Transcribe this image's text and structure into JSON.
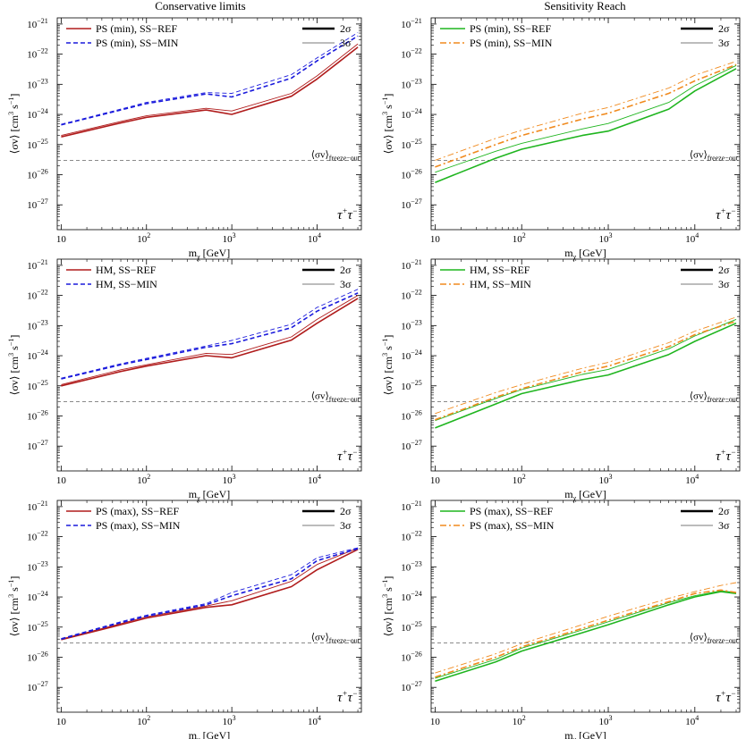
{
  "figure": {
    "column_titles": [
      "Conservative limits",
      "Sensitivity Reach"
    ]
  },
  "styles": {
    "red": "#b01c1c",
    "blue": "#1a1adc",
    "green": "#1fb51f",
    "orange": "#f08a1e",
    "gray": "#7a7a7a",
    "black": "#000000"
  },
  "chart_data": [
    {
      "id": "p00",
      "type": "line",
      "column": "Conservative limits",
      "xlabel": "m_χ [GeV]",
      "ylabel": "⟨σv⟩ [cm³ s⁻¹]",
      "xscale": "log",
      "yscale": "log",
      "xlim": [
        9,
        33000
      ],
      "ylim": [
        1.5e-28,
        1.6e-21
      ],
      "x_ticks": [
        10,
        100,
        1000,
        10000
      ],
      "x_tick_labels": [
        "10",
        "10²",
        "10³",
        "10⁴"
      ],
      "y_ticks": [
        1e-27,
        1e-26,
        1e-25,
        1e-24,
        1e-23,
        1e-22,
        1e-21
      ],
      "y_tick_labels": [
        "10⁻²⁷",
        "10⁻²⁶",
        "10⁻²⁵",
        "10⁻²⁴",
        "10⁻²³",
        "10⁻²²",
        "10⁻²¹"
      ],
      "channel": "τ⁺τ⁻",
      "freeze_out": {
        "value": 3e-26,
        "label": "⟨σv⟩",
        "sub": "freeze−out"
      },
      "legend": {
        "placement": "top-left",
        "entries": [
          "PS (min), SS−REF",
          "PS (min), SS−MIN"
        ]
      },
      "sigma_legend": {
        "placement": "top-right",
        "entries": [
          "2σ",
          "3σ"
        ]
      },
      "x": [
        10,
        50,
        100,
        500,
        1000,
        5000,
        10000,
        30000
      ],
      "series": [
        {
          "name": "PS (min), SS−REF",
          "sigma": "2σ",
          "color": "red",
          "dash": "solid",
          "values": [
            1.8e-25,
            5.2e-25,
            8e-25,
            1.4e-24,
            1e-24,
            4e-24,
            1.5e-23,
            1.7e-22
          ]
        },
        {
          "name": "PS (min), SS−REF",
          "sigma": "3σ",
          "color": "red",
          "dash": "solid",
          "values": [
            2e-25,
            5.8e-25,
            9e-25,
            1.6e-24,
            1.3e-24,
            5e-24,
            1.9e-23,
            2.2e-22
          ]
        },
        {
          "name": "PS (min), SS−MIN",
          "sigma": "2σ",
          "color": "blue",
          "dash": "dash",
          "values": [
            4.5e-25,
            1.4e-24,
            2.3e-24,
            4.8e-24,
            3.8e-24,
            1.6e-23,
            6e-23,
            4e-22
          ]
        },
        {
          "name": "PS (min), SS−MIN",
          "sigma": "3σ",
          "color": "blue",
          "dash": "dash",
          "values": [
            4.7e-25,
            1.5e-24,
            2.5e-24,
            5.3e-24,
            5e-24,
            2.1e-23,
            7.5e-23,
            5.2e-22
          ]
        }
      ]
    },
    {
      "id": "p01",
      "type": "line",
      "column": "Sensitivity Reach",
      "xlabel": "m_χ [GeV]",
      "ylabel": "⟨σv⟩ [cm³ s⁻¹]",
      "xscale": "log",
      "yscale": "log",
      "xlim": [
        9,
        33000
      ],
      "ylim": [
        1.5e-28,
        1.6e-21
      ],
      "x_ticks": [
        10,
        100,
        1000,
        10000
      ],
      "x_tick_labels": [
        "10",
        "10²",
        "10³",
        "10⁴"
      ],
      "y_ticks": [
        1e-27,
        1e-26,
        1e-25,
        1e-24,
        1e-23,
        1e-22,
        1e-21
      ],
      "y_tick_labels": [
        "10⁻²⁷",
        "10⁻²⁶",
        "10⁻²⁵",
        "10⁻²⁴",
        "10⁻²³",
        "10⁻²²",
        "10⁻²¹"
      ],
      "channel": "τ⁺τ⁻",
      "freeze_out": {
        "value": 3e-26,
        "label": "⟨σv⟩",
        "sub": "freeze−out"
      },
      "legend": {
        "placement": "top-left",
        "entries": [
          "PS (min), SS−REF",
          "PS (min), SS−MIN"
        ]
      },
      "sigma_legend": {
        "placement": "top-right",
        "entries": [
          "2σ",
          "3σ"
        ]
      },
      "x": [
        10,
        50,
        100,
        500,
        1000,
        5000,
        10000,
        30000
      ],
      "series": [
        {
          "name": "PS (min), SS−REF",
          "sigma": "2σ",
          "color": "green",
          "dash": "solid",
          "values": [
            5.5e-27,
            3.5e-26,
            7e-26,
            2e-25,
            2.8e-25,
            1.5e-24,
            6e-24,
            3.3e-23
          ]
        },
        {
          "name": "PS (min), SS−REF",
          "sigma": "3σ",
          "color": "green",
          "dash": "solid",
          "values": [
            1.2e-26,
            6e-26,
            1.1e-25,
            3.3e-25,
            5e-25,
            2.5e-24,
            9e-24,
            4.2e-23
          ]
        },
        {
          "name": "PS (min), SS−MIN",
          "sigma": "2σ",
          "color": "orange",
          "dash": "dashdot",
          "values": [
            1.8e-26,
            1e-25,
            2e-25,
            7e-25,
            1.1e-24,
            5e-24,
            1.3e-23,
            4.5e-23
          ]
        },
        {
          "name": "PS (min), SS−MIN",
          "sigma": "3σ",
          "color": "orange",
          "dash": "dashdot",
          "values": [
            3e-26,
            1.6e-25,
            3e-25,
            1.1e-24,
            1.7e-24,
            7.5e-24,
            2e-23,
            5.8e-23
          ]
        }
      ]
    },
    {
      "id": "p10",
      "type": "line",
      "column": "Conservative limits",
      "xlabel": "m_χ [GeV]",
      "ylabel": "⟨σv⟩ [cm³ s⁻¹]",
      "xscale": "log",
      "yscale": "log",
      "xlim": [
        9,
        33000
      ],
      "ylim": [
        1.5e-28,
        1.6e-21
      ],
      "x_ticks": [
        10,
        100,
        1000,
        10000
      ],
      "x_tick_labels": [
        "10",
        "10²",
        "10³",
        "10⁴"
      ],
      "y_ticks": [
        1e-27,
        1e-26,
        1e-25,
        1e-24,
        1e-23,
        1e-22,
        1e-21
      ],
      "y_tick_labels": [
        "10⁻²⁷",
        "10⁻²⁶",
        "10⁻²⁵",
        "10⁻²⁴",
        "10⁻²³",
        "10⁻²²",
        "10⁻²¹"
      ],
      "channel": "τ⁺τ⁻",
      "freeze_out": {
        "value": 3e-26,
        "label": "⟨σv⟩",
        "sub": "freeze−out"
      },
      "legend": {
        "placement": "top-left",
        "entries": [
          "HM, SS−REF",
          "HM, SS−MIN"
        ]
      },
      "sigma_legend": {
        "placement": "top-right",
        "entries": [
          "2σ",
          "3σ"
        ]
      },
      "x": [
        10,
        50,
        100,
        500,
        1000,
        5000,
        10000,
        30000
      ],
      "series": [
        {
          "name": "HM, SS−REF",
          "sigma": "2σ",
          "color": "red",
          "dash": "solid",
          "values": [
            1e-25,
            3e-25,
            4.5e-25,
            1e-24,
            8.5e-25,
            3.3e-24,
            1.2e-23,
            8e-23
          ]
        },
        {
          "name": "HM, SS−REF",
          "sigma": "3σ",
          "color": "red",
          "dash": "solid",
          "values": [
            1.1e-25,
            3.4e-25,
            5e-25,
            1.2e-24,
            1.1e-24,
            4.2e-24,
            1.6e-23,
            1e-22
          ]
        },
        {
          "name": "HM, SS−MIN",
          "sigma": "2σ",
          "color": "blue",
          "dash": "dash",
          "values": [
            1.7e-25,
            5e-25,
            7.5e-25,
            1.9e-24,
            2.5e-24,
            8.5e-24,
            3e-23,
            1.2e-22
          ]
        },
        {
          "name": "HM, SS−MIN",
          "sigma": "3σ",
          "color": "blue",
          "dash": "dash",
          "values": [
            1.8e-25,
            5.4e-25,
            8.2e-25,
            2.1e-24,
            3.2e-24,
            1.1e-23,
            4e-23,
            1.6e-22
          ]
        }
      ]
    },
    {
      "id": "p11",
      "type": "line",
      "column": "Sensitivity Reach",
      "xlabel": "m_χ [GeV]",
      "ylabel": "⟨σv⟩ [cm³ s⁻¹]",
      "xscale": "log",
      "yscale": "log",
      "xlim": [
        9,
        33000
      ],
      "ylim": [
        1.5e-28,
        1.6e-21
      ],
      "x_ticks": [
        10,
        100,
        1000,
        10000
      ],
      "x_tick_labels": [
        "10",
        "10²",
        "10³",
        "10⁴"
      ],
      "y_ticks": [
        1e-27,
        1e-26,
        1e-25,
        1e-24,
        1e-23,
        1e-22,
        1e-21
      ],
      "y_tick_labels": [
        "10⁻²⁷",
        "10⁻²⁶",
        "10⁻²⁵",
        "10⁻²⁴",
        "10⁻²³",
        "10⁻²²",
        "10⁻²¹"
      ],
      "channel": "τ⁺τ⁻",
      "freeze_out": {
        "value": 3e-26,
        "label": "⟨σv⟩",
        "sub": "freeze−out"
      },
      "legend": {
        "placement": "top-left",
        "entries": [
          "HM, SS−REF",
          "HM, SS−MIN"
        ]
      },
      "sigma_legend": {
        "placement": "top-right",
        "entries": [
          "2σ",
          "3σ"
        ]
      },
      "x": [
        10,
        50,
        100,
        500,
        1000,
        5000,
        10000,
        30000
      ],
      "series": [
        {
          "name": "HM, SS−REF",
          "sigma": "2σ",
          "color": "green",
          "dash": "solid",
          "values": [
            4e-27,
            2.5e-26,
            5.5e-26,
            1.6e-25,
            2.3e-25,
            1.1e-24,
            3e-24,
            1.2e-23
          ]
        },
        {
          "name": "HM, SS−REF",
          "sigma": "3σ",
          "color": "green",
          "dash": "solid",
          "values": [
            7e-27,
            3.8e-26,
            7.5e-26,
            2.4e-25,
            3.5e-25,
            1.7e-24,
            4.5e-24,
            1.6e-23
          ]
        },
        {
          "name": "HM, SS−MIN",
          "sigma": "2σ",
          "color": "orange",
          "dash": "dashdot",
          "values": [
            7.5e-27,
            4.2e-26,
            8e-26,
            2.9e-25,
            4.5e-25,
            2e-24,
            5e-24,
            1.4e-23
          ]
        },
        {
          "name": "HM, SS−MIN",
          "sigma": "3σ",
          "color": "orange",
          "dash": "dashdot",
          "values": [
            1.2e-26,
            6e-26,
            1.1e-25,
            3.8e-25,
            6e-25,
            2.7e-24,
            6.5e-24,
            1.9e-23
          ]
        }
      ]
    },
    {
      "id": "p20",
      "type": "line",
      "column": "Conservative limits",
      "xlabel": "m_χ [GeV]",
      "ylabel": "⟨σv⟩ [cm³ s⁻¹]",
      "xscale": "log",
      "yscale": "log",
      "xlim": [
        9,
        33000
      ],
      "ylim": [
        1.5e-28,
        1.6e-21
      ],
      "x_ticks": [
        10,
        100,
        1000,
        10000
      ],
      "x_tick_labels": [
        "10",
        "10²",
        "10³",
        "10⁴"
      ],
      "y_ticks": [
        1e-27,
        1e-26,
        1e-25,
        1e-24,
        1e-23,
        1e-22,
        1e-21
      ],
      "y_tick_labels": [
        "10⁻²⁷",
        "10⁻²⁶",
        "10⁻²⁵",
        "10⁻²⁴",
        "10⁻²³",
        "10⁻²²",
        "10⁻²¹"
      ],
      "channel": "τ⁺τ⁻",
      "freeze_out": {
        "value": 3e-26,
        "label": "⟨σv⟩",
        "sub": "freeze−out"
      },
      "legend": {
        "placement": "top-left",
        "entries": [
          "PS (max), SS−REF",
          "PS (max), SS−MIN"
        ]
      },
      "sigma_legend": {
        "placement": "top-right",
        "entries": [
          "2σ",
          "3σ"
        ]
      },
      "x": [
        10,
        50,
        100,
        500,
        1000,
        5000,
        10000,
        30000
      ],
      "series": [
        {
          "name": "PS (max), SS−REF",
          "sigma": "2σ",
          "color": "red",
          "dash": "solid",
          "values": [
            3.8e-26,
            1.2e-25,
            2e-25,
            4.5e-25,
            5.5e-25,
            2.2e-24,
            8e-24,
            3.8e-23
          ]
        },
        {
          "name": "PS (max), SS−REF",
          "sigma": "3σ",
          "color": "red",
          "dash": "solid",
          "values": [
            4e-26,
            1.3e-25,
            2.2e-25,
            5e-25,
            7.5e-25,
            3.3e-24,
            1.2e-23,
            4.2e-23
          ]
        },
        {
          "name": "PS (max), SS−MIN",
          "sigma": "2σ",
          "color": "blue",
          "dash": "dash",
          "values": [
            4e-26,
            1.4e-25,
            2.3e-25,
            5.5e-25,
            1.1e-24,
            4e-24,
            1.6e-23,
            4e-23
          ]
        },
        {
          "name": "PS (max), SS−MIN",
          "sigma": "3σ",
          "color": "blue",
          "dash": "dash",
          "values": [
            4.2e-26,
            1.5e-25,
            2.5e-25,
            6e-25,
            1.4e-24,
            5.5e-24,
            2e-23,
            4.3e-23
          ]
        }
      ]
    },
    {
      "id": "p21",
      "type": "line",
      "column": "Sensitivity Reach",
      "xlabel": "m_χ [GeV]",
      "ylabel": "⟨σv⟩ [cm³ s⁻¹]",
      "xscale": "log",
      "yscale": "log",
      "xlim": [
        9,
        33000
      ],
      "ylim": [
        1.5e-28,
        1.6e-21
      ],
      "x_ticks": [
        10,
        100,
        1000,
        10000
      ],
      "x_tick_labels": [
        "10",
        "10²",
        "10³",
        "10⁴"
      ],
      "y_ticks": [
        1e-27,
        1e-26,
        1e-25,
        1e-24,
        1e-23,
        1e-22,
        1e-21
      ],
      "y_tick_labels": [
        "10⁻²⁷",
        "10⁻²⁶",
        "10⁻²⁵",
        "10⁻²⁴",
        "10⁻²³",
        "10⁻²²",
        "10⁻²¹"
      ],
      "channel": "τ⁺τ⁻",
      "freeze_out": {
        "value": 3e-26,
        "label": "⟨σv⟩",
        "sub": "freeze−out"
      },
      "legend": {
        "placement": "top-left",
        "entries": [
          "PS (max), SS−REF",
          "PS (max), SS−MIN"
        ]
      },
      "sigma_legend": {
        "placement": "top-right",
        "entries": [
          "2σ",
          "3σ"
        ]
      },
      "x": [
        10,
        50,
        100,
        500,
        1000,
        5000,
        10000,
        20000,
        30000
      ],
      "series": [
        {
          "name": "PS (max), SS−REF",
          "sigma": "2σ",
          "color": "green",
          "dash": "solid",
          "values": [
            1.6e-27,
            7e-27,
            1.6e-26,
            6.5e-26,
            1.2e-25,
            5.5e-25,
            1e-24,
            1.5e-24,
            1.3e-24
          ]
        },
        {
          "name": "PS (max), SS−REF",
          "sigma": "3σ",
          "color": "green",
          "dash": "solid",
          "values": [
            2e-27,
            8.5e-27,
            2e-26,
            8e-26,
            1.5e-25,
            6.5e-25,
            1.1e-24,
            1.6e-24,
            1.4e-24
          ]
        },
        {
          "name": "PS (max), SS−MIN",
          "sigma": "2σ",
          "color": "orange",
          "dash": "dashdot",
          "values": [
            2.2e-27,
            1e-26,
            2.2e-26,
            9e-26,
            1.7e-25,
            7e-25,
            1.3e-24,
            1.7e-24,
            1.4e-24
          ]
        },
        {
          "name": "PS (max), SS−MIN",
          "sigma": "3σ",
          "color": "orange",
          "dash": "dashdot",
          "values": [
            3e-27,
            1.3e-26,
            2.8e-26,
            1.2e-25,
            2.3e-25,
            9e-25,
            1.5e-24,
            2.4e-24,
            3e-24
          ]
        }
      ]
    }
  ]
}
